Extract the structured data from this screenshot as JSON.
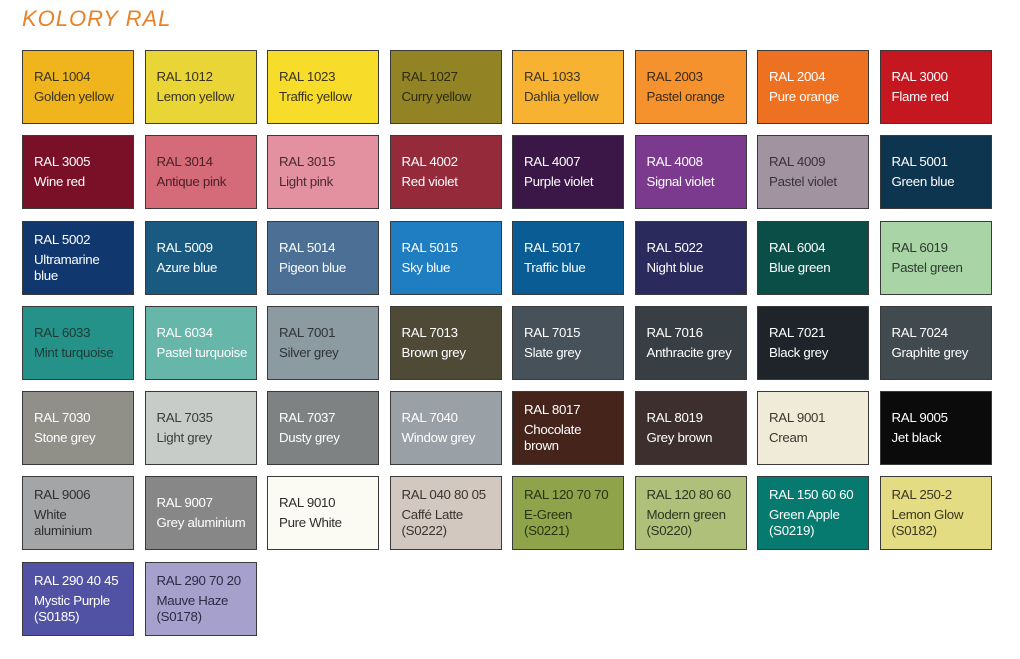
{
  "title": "KOLORY RAL",
  "swatches": [
    {
      "code": "RAL 1004",
      "name": [
        "Golden yellow"
      ],
      "bg": "#f0b51c",
      "fg": "#3a3320"
    },
    {
      "code": "RAL 1012",
      "name": [
        "Lemon yellow"
      ],
      "bg": "#e9d535",
      "fg": "#3a3320"
    },
    {
      "code": "RAL 1023",
      "name": [
        "Traffic yellow"
      ],
      "bg": "#f7dc2a",
      "fg": "#3a3320"
    },
    {
      "code": "RAL 1027",
      "name": [
        "Curry yellow"
      ],
      "bg": "#928325",
      "fg": "#2e2a12"
    },
    {
      "code": "RAL 1033",
      "name": [
        "Dahlia yellow"
      ],
      "bg": "#f8b232",
      "fg": "#3a3320"
    },
    {
      "code": "RAL 2003",
      "name": [
        "Pastel orange"
      ],
      "bg": "#f6922d",
      "fg": "#3a2a1a"
    },
    {
      "code": "RAL 2004",
      "name": [
        "Pure orange"
      ],
      "bg": "#ee7121",
      "fg": "#ffffff"
    },
    {
      "code": "RAL 3000",
      "name": [
        "Flame red"
      ],
      "bg": "#c4171f",
      "fg": "#ffffff"
    },
    {
      "code": "RAL 3005",
      "name": [
        "Wine red"
      ],
      "bg": "#7a1027",
      "fg": "#ffffff"
    },
    {
      "code": "RAL 3014",
      "name": [
        "Antique pink"
      ],
      "bg": "#d56a78",
      "fg": "#4a2228"
    },
    {
      "code": "RAL 3015",
      "name": [
        "Light pink"
      ],
      "bg": "#e391a0",
      "fg": "#4a2a30"
    },
    {
      "code": "RAL 4002",
      "name": [
        "Red violet"
      ],
      "bg": "#952a3a",
      "fg": "#ffffff"
    },
    {
      "code": "RAL 4007",
      "name": [
        "Purple violet"
      ],
      "bg": "#3b1748",
      "fg": "#ffffff"
    },
    {
      "code": "RAL 4008",
      "name": [
        "Signal violet"
      ],
      "bg": "#7c3a8e",
      "fg": "#ffffff"
    },
    {
      "code": "RAL 4009",
      "name": [
        "Pastel violet"
      ],
      "bg": "#a1939f",
      "fg": "#3a3238"
    },
    {
      "code": "RAL 5001",
      "name": [
        "Green blue"
      ],
      "bg": "#0e3550",
      "fg": "#ffffff"
    },
    {
      "code": "RAL 5002",
      "name": [
        "Ultramarine",
        "blue"
      ],
      "bg": "#10386f",
      "fg": "#ffffff"
    },
    {
      "code": "RAL 5009",
      "name": [
        "Azure blue"
      ],
      "bg": "#1b5a80",
      "fg": "#ffffff"
    },
    {
      "code": "RAL 5014",
      "name": [
        "Pigeon blue"
      ],
      "bg": "#4b6f95",
      "fg": "#ffffff"
    },
    {
      "code": "RAL 5015",
      "name": [
        "Sky blue"
      ],
      "bg": "#1f7dc2",
      "fg": "#ffffff"
    },
    {
      "code": "RAL 5017",
      "name": [
        "Traffic blue"
      ],
      "bg": "#0a5c94",
      "fg": "#ffffff"
    },
    {
      "code": "RAL 5022",
      "name": [
        "Night blue"
      ],
      "bg": "#2a2a5c",
      "fg": "#ffffff"
    },
    {
      "code": "RAL 6004",
      "name": [
        "Blue green"
      ],
      "bg": "#0b4e48",
      "fg": "#ffffff"
    },
    {
      "code": "RAL 6019",
      "name": [
        "Pastel green"
      ],
      "bg": "#a8d4a6",
      "fg": "#2e3a2e"
    },
    {
      "code": "RAL 6033",
      "name": [
        "Mint turquoise"
      ],
      "bg": "#25928a",
      "fg": "#1e3a36"
    },
    {
      "code": "RAL 6034",
      "name": [
        "Pastel turquoise"
      ],
      "bg": "#66b6aa",
      "fg": "#ffffff"
    },
    {
      "code": "RAL 7001",
      "name": [
        "Silver grey"
      ],
      "bg": "#8c9aa1",
      "fg": "#2e3438"
    },
    {
      "code": "RAL 7013",
      "name": [
        "Brown grey"
      ],
      "bg": "#4e4a36",
      "fg": "#ffffff"
    },
    {
      "code": "RAL 7015",
      "name": [
        "Slate grey"
      ],
      "bg": "#47515a",
      "fg": "#ffffff"
    },
    {
      "code": "RAL 7016",
      "name": [
        "Anthracite grey"
      ],
      "bg": "#373f44",
      "fg": "#ffffff"
    },
    {
      "code": "RAL 7021",
      "name": [
        "Black grey"
      ],
      "bg": "#1e2429",
      "fg": "#ffffff"
    },
    {
      "code": "RAL 7024",
      "name": [
        "Graphite grey"
      ],
      "bg": "#414a4f",
      "fg": "#ffffff"
    },
    {
      "code": "RAL 7030",
      "name": [
        "Stone grey"
      ],
      "bg": "#908f88",
      "fg": "#ffffff"
    },
    {
      "code": "RAL 7035",
      "name": [
        "Light grey"
      ],
      "bg": "#c7ccc9",
      "fg": "#3a3d3c"
    },
    {
      "code": "RAL 7037",
      "name": [
        "Dusty grey"
      ],
      "bg": "#7e8283",
      "fg": "#ffffff"
    },
    {
      "code": "RAL 7040",
      "name": [
        "Window grey"
      ],
      "bg": "#9aa1a6",
      "fg": "#ffffff"
    },
    {
      "code": "RAL 8017",
      "name": [
        "Chocolate",
        "brown"
      ],
      "bg": "#45241c",
      "fg": "#ffffff"
    },
    {
      "code": "RAL 8019",
      "name": [
        "Grey brown"
      ],
      "bg": "#3d2f2e",
      "fg": "#ffffff"
    },
    {
      "code": "RAL 9001",
      "name": [
        "Cream"
      ],
      "bg": "#f0ebd8",
      "fg": "#3a3830"
    },
    {
      "code": "RAL 9005",
      "name": [
        "Jet black"
      ],
      "bg": "#0b0b0b",
      "fg": "#ffffff"
    },
    {
      "code": "RAL 9006",
      "name": [
        "White",
        "aluminium"
      ],
      "bg": "#a3a5a6",
      "fg": "#2e3032"
    },
    {
      "code": "RAL 9007",
      "name": [
        "Grey aluminium"
      ],
      "bg": "#878787",
      "fg": "#ffffff"
    },
    {
      "code": "RAL 9010",
      "name": [
        "Pure White"
      ],
      "bg": "#fcfbf3",
      "fg": "#2e2e2a"
    },
    {
      "code": "RAL 040 80 05",
      "name": [
        "Caffé Latte",
        "(S0222)"
      ],
      "bg": "#d2c8c0",
      "fg": "#3a3430"
    },
    {
      "code": "RAL 120 70 70",
      "name": [
        "E-Green",
        "(S0221)"
      ],
      "bg": "#8ea34a",
      "fg": "#2a3214"
    },
    {
      "code": "RAL 120 80 60",
      "name": [
        "Modern green",
        "(S0220)"
      ],
      "bg": "#aec07a",
      "fg": "#2e3420"
    },
    {
      "code": "RAL 150 60 60",
      "name": [
        "Green Apple",
        "(S0219)"
      ],
      "bg": "#067a6e",
      "fg": "#ffffff"
    },
    {
      "code": "RAL 250-2",
      "name": [
        "Lemon Glow",
        "(S0182)"
      ],
      "bg": "#e4dc82",
      "fg": "#3a3620"
    },
    {
      "code": "RAL 290 40 45",
      "name": [
        "Mystic Purple",
        "(S0185)"
      ],
      "bg": "#5252a4",
      "fg": "#ffffff"
    },
    {
      "code": "RAL 290 70 20",
      "name": [
        "Mauve Haze",
        "(S0178)"
      ],
      "bg": "#a6a0cc",
      "fg": "#2e2a44"
    }
  ]
}
